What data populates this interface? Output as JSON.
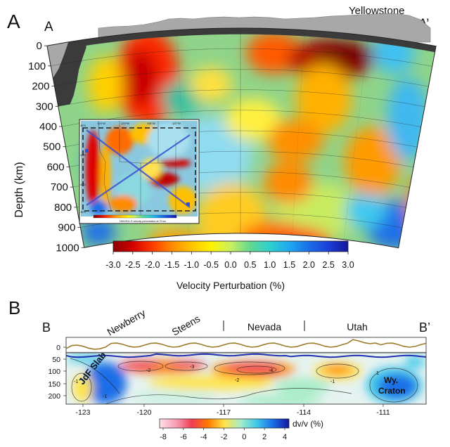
{
  "panel_a": {
    "letter": "A",
    "left_label": "A",
    "right_label": "A’",
    "site_label": "Yellowstone",
    "ylabel": "Depth (km)",
    "depth_ticks": [
      "0",
      "100",
      "200",
      "300",
      "400",
      "500",
      "600",
      "700",
      "800",
      "900",
      "1000"
    ],
    "colorbar_ticks": [
      "-3.0",
      "-2.5",
      "-2.0",
      "-1.5",
      "-1.0",
      "-0.5",
      "0.0",
      "0.5",
      "1.0",
      "1.5",
      "2.0",
      "2.5",
      "3.0"
    ],
    "colorbar_label": "Velocity Perturbation (%)",
    "inset": {
      "lon_labels": [
        "124°W",
        "120°W",
        "116°W",
        "112°W"
      ],
      "lat_labels": [
        "48°N",
        "44°N",
        "40°N",
        "36°N"
      ],
      "caption": "NWUS11-S velocity perturbation at 75 km"
    }
  },
  "panel_b": {
    "letter": "B",
    "left_label": "B",
    "right_label": "B’",
    "regions": [
      "Newberry",
      "Steens",
      "Nevada",
      "Utah"
    ],
    "depth_ticks": [
      "0",
      "50",
      "100",
      "150",
      "200"
    ],
    "lon_ticks": [
      "-123",
      "-120",
      "-117",
      "-114",
      "-111"
    ],
    "slab_label": "JdF Slab",
    "craton_label_1": "Wy.",
    "craton_label_2": "Craton",
    "contour_labels": [
      "-2",
      "-3",
      "-4",
      "-2",
      "-1",
      "-1",
      "1",
      "-1"
    ],
    "colorbar_ticks": [
      "-8",
      "-6",
      "-4",
      "-2",
      "0",
      "2",
      "4"
    ],
    "colorbar_label": "dv/v (%)"
  },
  "colors": {
    "slow": "#b80000",
    "fast": "#1a2fb8",
    "topo_gray": "#a8a8a8",
    "dark_gray": "#3a3a3a",
    "topo_line_b": "#9c7a2a",
    "moho_line_b": "#1f2fb0"
  }
}
